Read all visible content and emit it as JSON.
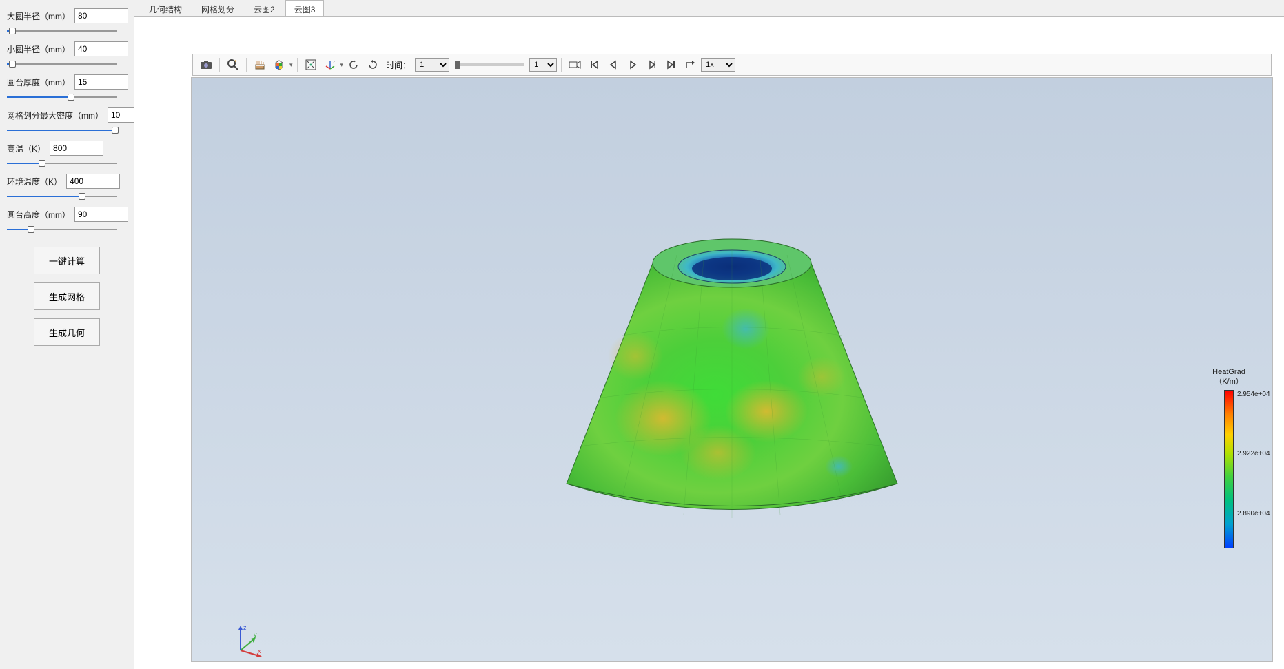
{
  "sidebar": {
    "params": [
      {
        "label": "大圆半径（mm）",
        "value": "80",
        "slider_pct": 5
      },
      {
        "label": "小圆半径（mm）",
        "value": "40",
        "slider_pct": 5
      },
      {
        "label": "圆台厚度（mm）",
        "value": "15",
        "slider_pct": 58
      },
      {
        "label": "网格划分最大密度（mm）",
        "value": "10",
        "slider_pct": 98
      },
      {
        "label": "高温（K）",
        "value": "800",
        "slider_pct": 32
      },
      {
        "label": "环境温度（K）",
        "value": "400",
        "slider_pct": 68
      },
      {
        "label": "圆台高度（mm）",
        "value": "90",
        "slider_pct": 22
      }
    ],
    "buttons": {
      "compute": "一键计算",
      "mesh": "生成网格",
      "geom": "生成几何"
    }
  },
  "tabs": {
    "items": [
      "几何结构",
      "网格划分",
      "云图2",
      "云图3"
    ],
    "active_index": 3
  },
  "toolbar": {
    "time_label": "时间：",
    "time_value": "1",
    "frame_value": "1",
    "speed_value": "1x"
  },
  "legend": {
    "title": "HeatGrad",
    "unit": "（K/m）",
    "ticks": [
      {
        "label": "2.954e+04",
        "pct": 0
      },
      {
        "label": "2.922e+04",
        "pct": 38
      },
      {
        "label": "2.890e+04",
        "pct": 76
      }
    ]
  },
  "colors": {
    "canvas_top": "#c2cfdf",
    "canvas_bottom": "#d6e0eb",
    "cone_green": "#4ccf3a",
    "cone_yellow": "#d6c93a",
    "cone_cyan": "#3fb8c7",
    "cone_blue": "#1a4fa8",
    "axis_x": "#d43a3a",
    "axis_y": "#3fae3f",
    "axis_z": "#3a5ad4"
  }
}
